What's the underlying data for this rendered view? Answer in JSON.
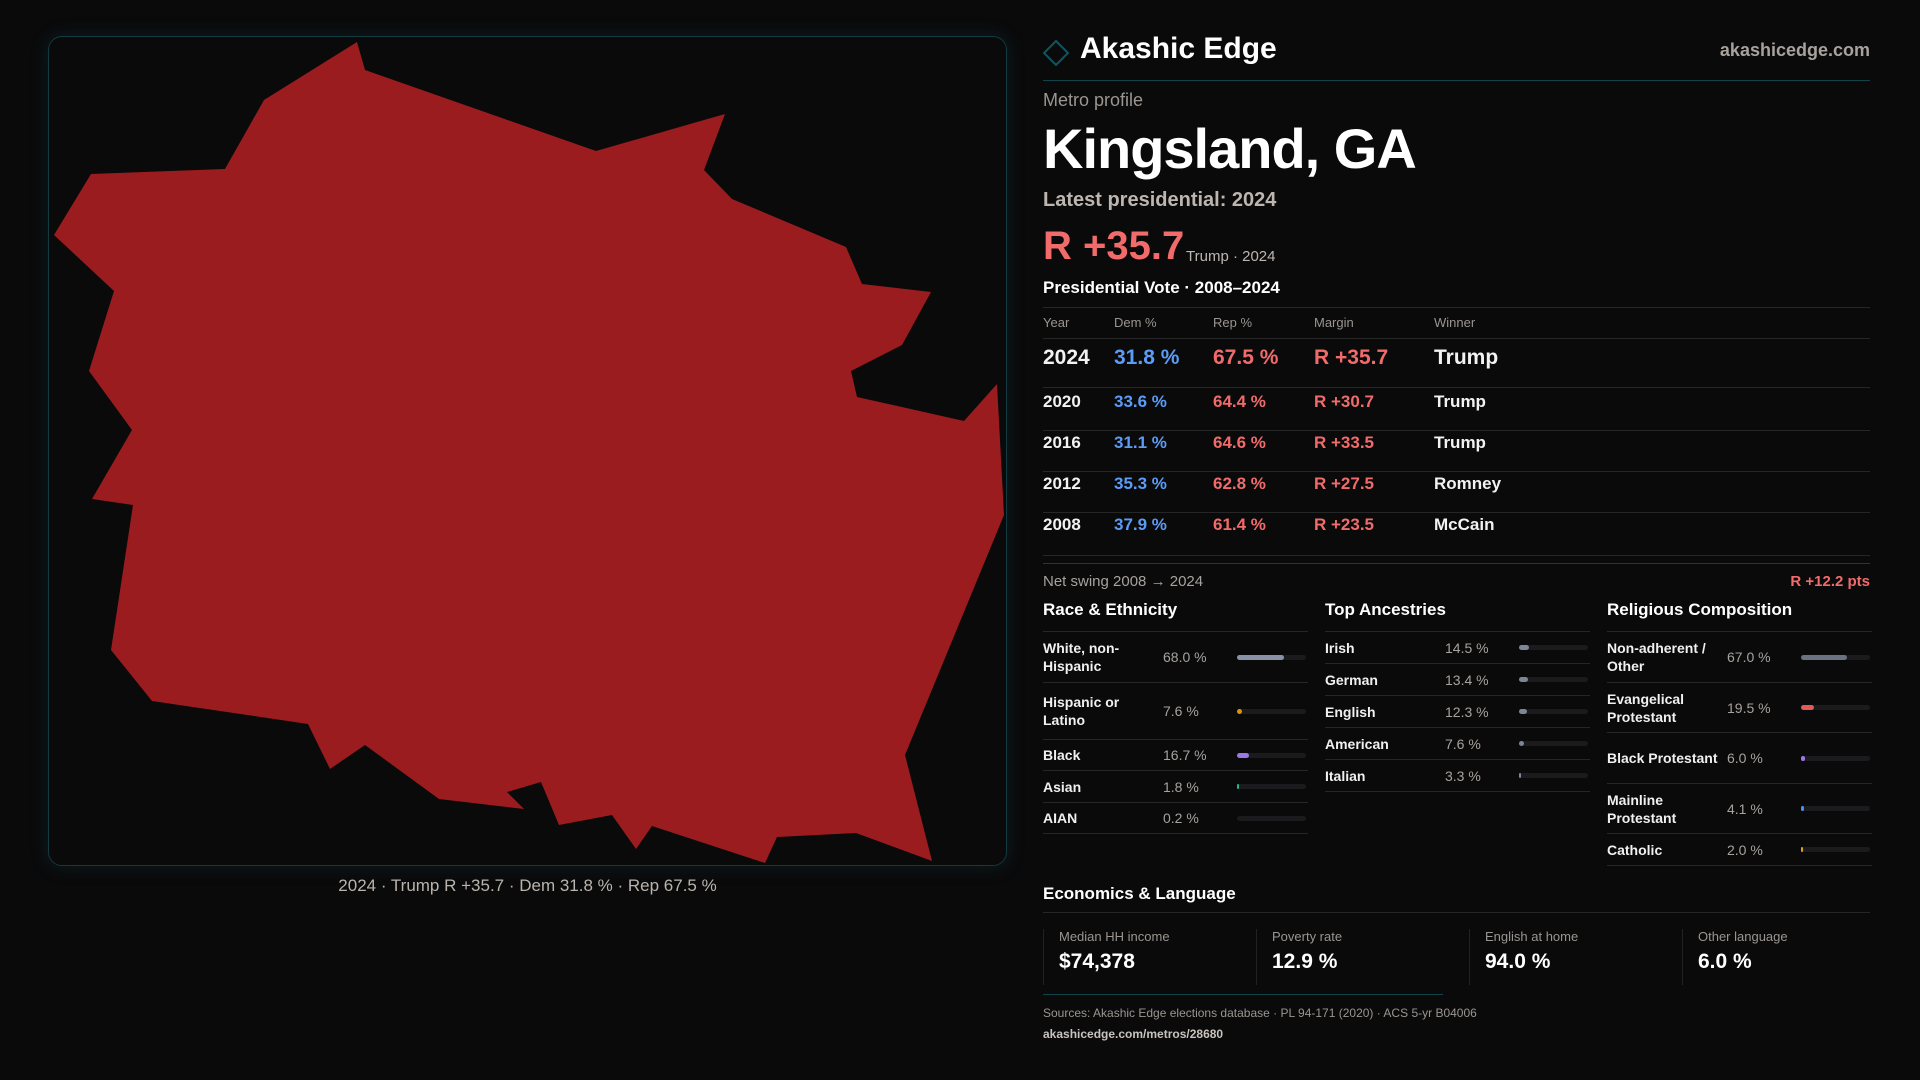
{
  "colors": {
    "rep_fill": "#9b1c1f",
    "dem": "#5b9cf6",
    "rep": "#f26b6b",
    "accent": "#0f4e57"
  },
  "map": {
    "caption": "2024 · Trump R +35.7 · Dem 31.8 % · Rep 67.5 %",
    "winner_party": "R"
  },
  "header": {
    "brand": "Akashic Edge",
    "site": "akashicedge.com",
    "logo_icon": "diamond-icon"
  },
  "profile": {
    "kicker": "Metro profile",
    "title": "Kingsland, GA",
    "latest": "Latest presidential: 2024",
    "margin": "R +35.7",
    "winner_sub": "Trump · 2024"
  },
  "vote": {
    "title": "Presidential Vote · 2008–2024",
    "columns": [
      "Year",
      "Dem %",
      "Rep %",
      "Margin",
      "Winner"
    ],
    "rows": [
      {
        "year": "2024",
        "dem": "31.8 %",
        "rep": "67.5 %",
        "margin": "R +35.7",
        "winner": "Trump"
      },
      {
        "year": "2020",
        "dem": "33.6 %",
        "rep": "64.4 %",
        "margin": "R +30.7",
        "winner": "Trump"
      },
      {
        "year": "2016",
        "dem": "31.1 %",
        "rep": "64.6 %",
        "margin": "R +33.5",
        "winner": "Trump"
      },
      {
        "year": "2012",
        "dem": "35.3 %",
        "rep": "62.8 %",
        "margin": "R +27.5",
        "winner": "Romney"
      },
      {
        "year": "2008",
        "dem": "37.9 %",
        "rep": "61.4 %",
        "margin": "R +23.5",
        "winner": "McCain"
      }
    ],
    "swing_label": "Net swing 2008 → 2024",
    "swing_value": "R +12.2 pts"
  },
  "race": {
    "title": "Race & Ethnicity",
    "items": [
      {
        "label": "White, non-Hispanic",
        "pct": "68.0 %",
        "value": 68.0,
        "color": "#8a93a6"
      },
      {
        "label": "Hispanic or Latino",
        "pct": "7.6 %",
        "value": 7.6,
        "color": "#e0900f"
      },
      {
        "label": "Black",
        "pct": "16.7 %",
        "value": 16.7,
        "color": "#9a78e8"
      },
      {
        "label": "Asian",
        "pct": "1.8 %",
        "value": 1.8,
        "color": "#1fb88a"
      },
      {
        "label": "AIAN",
        "pct": "0.2 %",
        "value": 0.2,
        "color": "#c05050"
      }
    ]
  },
  "ancestry": {
    "title": "Top Ancestries",
    "items": [
      {
        "label": "Irish",
        "pct": "14.5 %",
        "value": 14.5,
        "color": "#7d8596"
      },
      {
        "label": "German",
        "pct": "13.4 %",
        "value": 13.4,
        "color": "#7d8596"
      },
      {
        "label": "English",
        "pct": "12.3 %",
        "value": 12.3,
        "color": "#7d8596"
      },
      {
        "label": "American",
        "pct": "7.6 %",
        "value": 7.6,
        "color": "#7d8596"
      },
      {
        "label": "Italian",
        "pct": "3.3 %",
        "value": 3.3,
        "color": "#7d8596"
      }
    ]
  },
  "religion": {
    "title": "Religious Composition",
    "items": [
      {
        "label": "Non-adherent / Other",
        "pct": "67.0 %",
        "value": 67.0,
        "color": "#6b7180"
      },
      {
        "label": "Evangelical Protestant",
        "pct": "19.5 %",
        "value": 19.5,
        "color": "#e05a5a"
      },
      {
        "label": "Black Protestant",
        "pct": "6.0 %",
        "value": 6.0,
        "color": "#9a78e8"
      },
      {
        "label": "Mainline Protestant",
        "pct": "4.1 %",
        "value": 4.1,
        "color": "#4b8fe8"
      },
      {
        "label": "Catholic",
        "pct": "2.0 %",
        "value": 2.0,
        "color": "#e0a020"
      }
    ]
  },
  "economics": {
    "title": "Economics & Language",
    "items": [
      {
        "label": "Median HH income",
        "value": "$74,378"
      },
      {
        "label": "Poverty rate",
        "value": "12.9 %"
      },
      {
        "label": "English at home",
        "value": "94.0 %"
      },
      {
        "label": "Other language",
        "value": "6.0 %"
      }
    ]
  },
  "footer": {
    "sources": "Sources: Akashic Edge elections database · PL 94-171 (2020) · ACS 5-yr B04006",
    "url": "akashicedge.com/metros/28680"
  }
}
